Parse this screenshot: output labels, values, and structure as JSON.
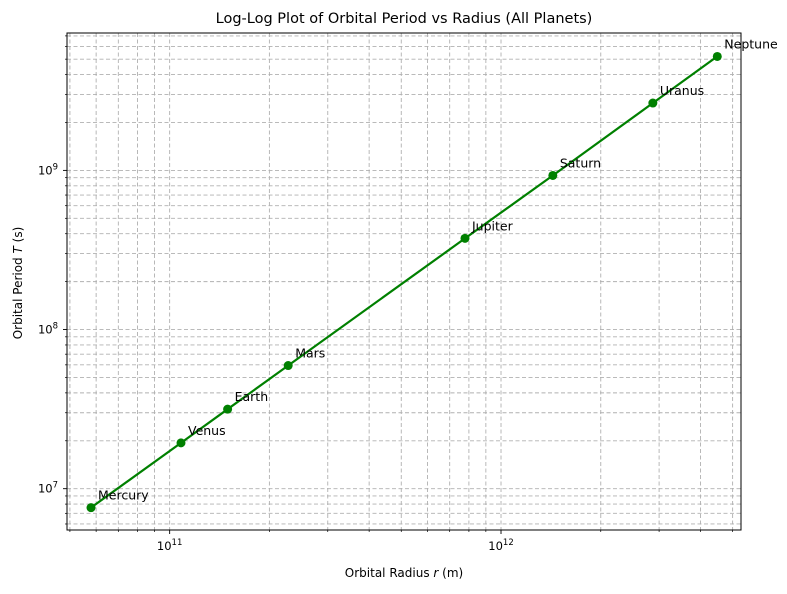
{
  "chart_data": {
    "type": "line",
    "title": "Log-Log Plot of Orbital Period vs Radius (All Planets)",
    "xlabel_prefix": "Orbital Radius ",
    "xlabel_var": "r",
    "xlabel_suffix": " (m)",
    "ylabel_prefix": "Orbital Period ",
    "ylabel_var": "T",
    "ylabel_suffix": " (s)",
    "x_scale": "log",
    "y_scale": "log",
    "xlim": [
      49000000000.0,
      5300000000000.0
    ],
    "ylim": [
      5500000.0,
      7300000000.0
    ],
    "grid": true,
    "grid_which": "both",
    "x_major_ticks": [
      {
        "value": 100000000000.0,
        "base": "10",
        "exp": "11"
      },
      {
        "value": 1000000000000.0,
        "base": "10",
        "exp": "12"
      }
    ],
    "y_major_ticks": [
      {
        "value": 10000000.0,
        "base": "10",
        "exp": "7"
      },
      {
        "value": 100000000.0,
        "base": "10",
        "exp": "8"
      },
      {
        "value": 1000000000.0,
        "base": "10",
        "exp": "9"
      }
    ],
    "series": [
      {
        "color": "#008000",
        "marker": "circle",
        "points": [
          {
            "label": "Mercury",
            "x": 57900000000.0,
            "y": 7600000.0
          },
          {
            "label": "Venus",
            "x": 108200000000.0,
            "y": 19400000.0
          },
          {
            "label": "Earth",
            "x": 149600000000.0,
            "y": 31600000.0
          },
          {
            "label": "Mars",
            "x": 227900000000.0,
            "y": 59400000.0
          },
          {
            "label": "Jupiter",
            "x": 778600000000.0,
            "y": 374000000.0
          },
          {
            "label": "Saturn",
            "x": 1433500000000.0,
            "y": 929000000.0
          },
          {
            "label": "Uranus",
            "x": 2872500000000.0,
            "y": 2650000000.0
          },
          {
            "label": "Neptune",
            "x": 4495100000000.0,
            "y": 5200000000.0
          }
        ]
      }
    ]
  }
}
